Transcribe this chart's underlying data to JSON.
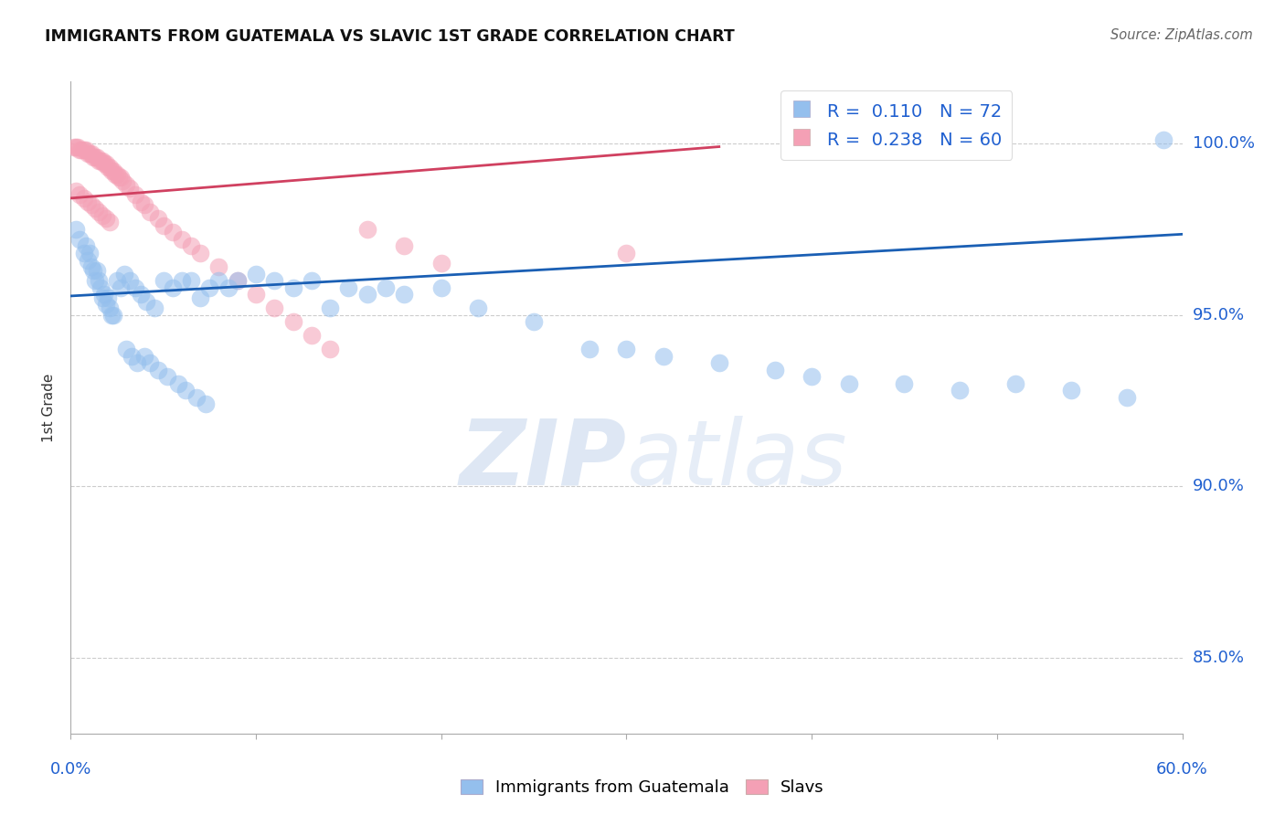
{
  "title": "IMMIGRANTS FROM GUATEMALA VS SLAVIC 1ST GRADE CORRELATION CHART",
  "source": "Source: ZipAtlas.com",
  "ylabel": "1st Grade",
  "ylabel_right_ticks": [
    "85.0%",
    "90.0%",
    "95.0%",
    "100.0%"
  ],
  "ylabel_right_vals": [
    0.85,
    0.9,
    0.95,
    1.0
  ],
  "xlim": [
    0.0,
    0.6
  ],
  "ylim": [
    0.828,
    1.018
  ],
  "legend1_R": "0.110",
  "legend1_N": "72",
  "legend2_R": "0.238",
  "legend2_N": "60",
  "blue_color": "#94bfed",
  "pink_color": "#f4a0b5",
  "blue_line_color": "#1a5fb4",
  "pink_line_color": "#d04060",
  "blue_scatter_x": [
    0.003,
    0.005,
    0.007,
    0.008,
    0.009,
    0.01,
    0.011,
    0.012,
    0.013,
    0.014,
    0.015,
    0.016,
    0.017,
    0.018,
    0.019,
    0.02,
    0.021,
    0.022,
    0.023,
    0.025,
    0.027,
    0.029,
    0.032,
    0.035,
    0.038,
    0.041,
    0.045,
    0.05,
    0.055,
    0.06,
    0.065,
    0.07,
    0.075,
    0.08,
    0.085,
    0.09,
    0.1,
    0.11,
    0.12,
    0.13,
    0.14,
    0.15,
    0.16,
    0.17,
    0.18,
    0.2,
    0.22,
    0.25,
    0.28,
    0.3,
    0.32,
    0.35,
    0.38,
    0.4,
    0.42,
    0.45,
    0.48,
    0.51,
    0.54,
    0.57,
    0.59,
    0.03,
    0.033,
    0.036,
    0.04,
    0.043,
    0.047,
    0.052,
    0.058,
    0.062,
    0.068,
    0.073
  ],
  "blue_scatter_y": [
    0.975,
    0.972,
    0.968,
    0.97,
    0.966,
    0.968,
    0.964,
    0.963,
    0.96,
    0.963,
    0.96,
    0.958,
    0.955,
    0.956,
    0.953,
    0.955,
    0.952,
    0.95,
    0.95,
    0.96,
    0.958,
    0.962,
    0.96,
    0.958,
    0.956,
    0.954,
    0.952,
    0.96,
    0.958,
    0.96,
    0.96,
    0.955,
    0.958,
    0.96,
    0.958,
    0.96,
    0.962,
    0.96,
    0.958,
    0.96,
    0.952,
    0.958,
    0.956,
    0.958,
    0.956,
    0.958,
    0.952,
    0.948,
    0.94,
    0.94,
    0.938,
    0.936,
    0.934,
    0.932,
    0.93,
    0.93,
    0.928,
    0.93,
    0.928,
    0.926,
    1.001,
    0.94,
    0.938,
    0.936,
    0.938,
    0.936,
    0.934,
    0.932,
    0.93,
    0.928,
    0.926,
    0.924
  ],
  "pink_scatter_x": [
    0.002,
    0.003,
    0.004,
    0.005,
    0.006,
    0.007,
    0.008,
    0.009,
    0.01,
    0.011,
    0.012,
    0.013,
    0.014,
    0.015,
    0.016,
    0.017,
    0.018,
    0.019,
    0.02,
    0.021,
    0.022,
    0.023,
    0.024,
    0.025,
    0.026,
    0.027,
    0.028,
    0.03,
    0.032,
    0.035,
    0.038,
    0.04,
    0.043,
    0.047,
    0.05,
    0.055,
    0.06,
    0.065,
    0.07,
    0.08,
    0.09,
    0.1,
    0.11,
    0.12,
    0.13,
    0.14,
    0.16,
    0.18,
    0.2,
    0.3,
    0.003,
    0.005,
    0.007,
    0.009,
    0.011,
    0.013,
    0.015,
    0.017,
    0.019,
    0.021
  ],
  "pink_scatter_y": [
    0.999,
    0.999,
    0.999,
    0.998,
    0.998,
    0.998,
    0.998,
    0.997,
    0.997,
    0.997,
    0.996,
    0.996,
    0.996,
    0.995,
    0.995,
    0.995,
    0.994,
    0.994,
    0.993,
    0.993,
    0.992,
    0.992,
    0.991,
    0.991,
    0.99,
    0.99,
    0.989,
    0.988,
    0.987,
    0.985,
    0.983,
    0.982,
    0.98,
    0.978,
    0.976,
    0.974,
    0.972,
    0.97,
    0.968,
    0.964,
    0.96,
    0.956,
    0.952,
    0.948,
    0.944,
    0.94,
    0.975,
    0.97,
    0.965,
    0.968,
    0.986,
    0.985,
    0.984,
    0.983,
    0.982,
    0.981,
    0.98,
    0.979,
    0.978,
    0.977
  ],
  "blue_line_x": [
    0.0,
    0.6
  ],
  "blue_line_y": [
    0.9555,
    0.9735
  ],
  "pink_line_x": [
    0.0,
    0.35
  ],
  "pink_line_y": [
    0.984,
    0.999
  ],
  "watermark_zip": "ZIP",
  "watermark_atlas": "atlas",
  "background_color": "#ffffff",
  "grid_color": "#cccccc"
}
